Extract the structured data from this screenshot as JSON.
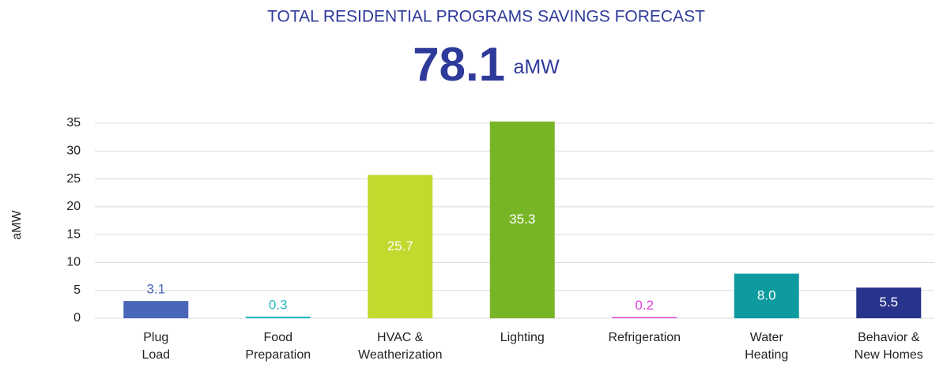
{
  "chart_data": {
    "type": "bar",
    "title": "TOTAL RESIDENTIAL PROGRAMS SAVINGS FORECAST",
    "total": 78.1,
    "total_unit": "aMW",
    "y_axis_label": "aMW",
    "categories": [
      "Plug\nLoad",
      "Food\nPreparation",
      "HVAC &\nWeatherization",
      "Lighting",
      "Refrigeration",
      "Water\nHeating",
      "Behavior &\nNew Homes"
    ],
    "values": [
      3.1,
      0.3,
      25.7,
      35.3,
      0.2,
      8.0,
      5.5
    ],
    "value_labels": [
      "3.1",
      "0.3",
      "25.7",
      "35.3",
      "0.2",
      "8.0",
      "5.5"
    ],
    "colors": [
      "#4a66b8",
      "#29b9c8",
      "#c2d92e",
      "#78b526",
      "#e040e0",
      "#0e9ba0",
      "#28348c"
    ],
    "ylim": [
      0,
      35
    ],
    "yticks": [
      0,
      5,
      10,
      15,
      20,
      25,
      30,
      35
    ],
    "grid": true
  }
}
